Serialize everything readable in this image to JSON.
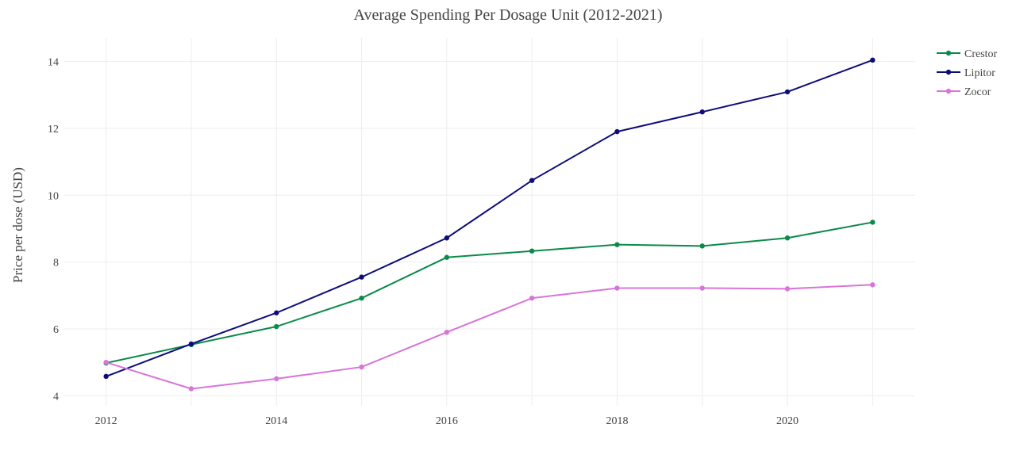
{
  "chart_data": {
    "type": "line",
    "title": "Average Spending Per Dosage Unit (2012-2021)",
    "xlabel": "",
    "ylabel": "Price per dose (USD)",
    "x": [
      2012,
      2013,
      2014,
      2015,
      2016,
      2017,
      2018,
      2019,
      2020,
      2021
    ],
    "xlim": [
      2011.5,
      2021.5
    ],
    "ylim": [
      3.7,
      14.7
    ],
    "xticks": [
      2012,
      2014,
      2016,
      2018,
      2020
    ],
    "yticks": [
      4,
      6,
      8,
      10,
      12,
      14
    ],
    "grid": true,
    "legend_position": "top-right",
    "series": [
      {
        "name": "Crestor",
        "color": "#0a8a4a",
        "values": [
          4.98,
          5.53,
          6.07,
          6.92,
          8.14,
          8.33,
          8.52,
          8.48,
          8.72,
          9.19
        ]
      },
      {
        "name": "Lipitor",
        "color": "#0d0d7a",
        "values": [
          4.58,
          5.55,
          6.48,
          7.55,
          8.72,
          10.44,
          11.9,
          12.49,
          13.09,
          14.04
        ]
      },
      {
        "name": "Zocor",
        "color": "#d875d8",
        "values": [
          5.0,
          4.21,
          4.51,
          4.86,
          5.9,
          6.92,
          7.22,
          7.22,
          7.2,
          7.32
        ]
      }
    ]
  }
}
